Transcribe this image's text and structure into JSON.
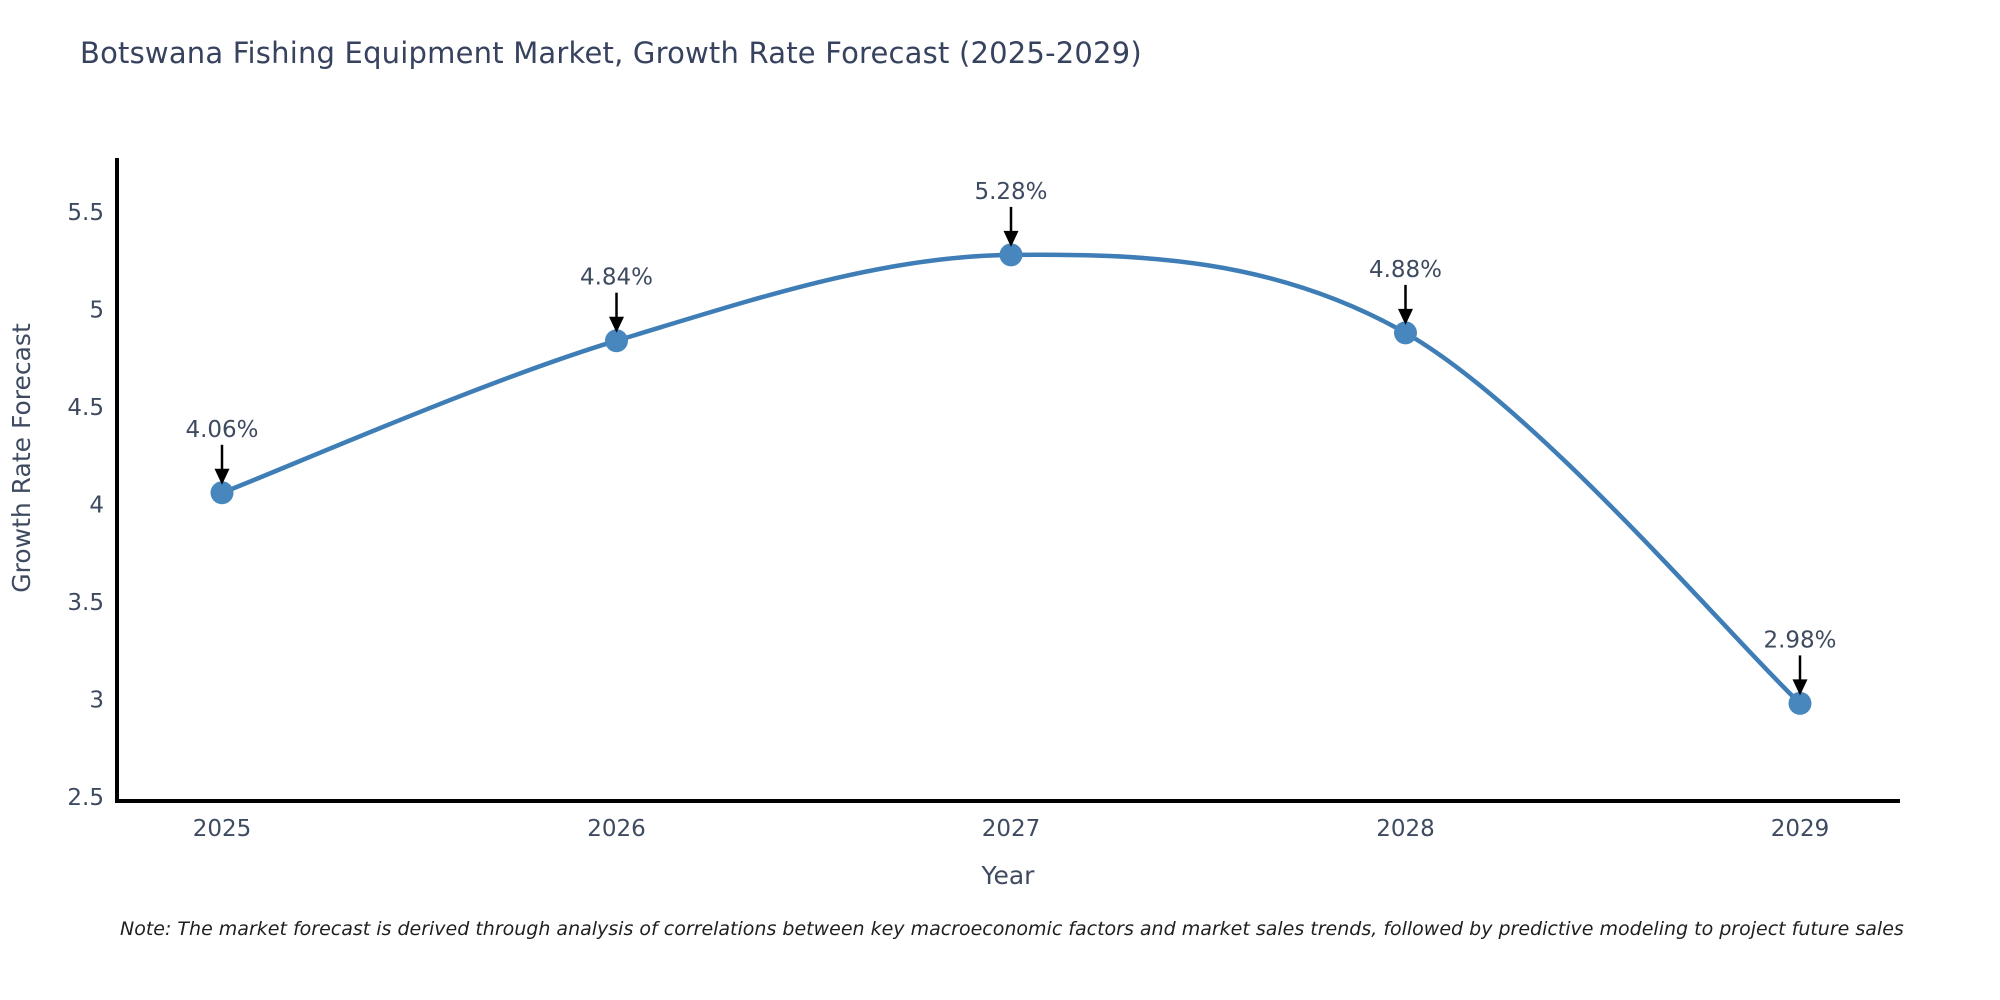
{
  "page": {
    "title": "Botswana Fishing Equipment Market, Growth Rate Forecast (2025-2029)",
    "note": "Note: The market forecast is derived through analysis of correlations between key macroeconomic factors and market sales trends, followed by predictive modeling to project future sales"
  },
  "chart_data": {
    "type": "line",
    "title": "Botswana Fishing Equipment Market, Growth Rate Forecast (2025-2029)",
    "x": [
      "2025",
      "2026",
      "2027",
      "2028",
      "2029"
    ],
    "series": [
      {
        "name": "Growth Rate Forecast",
        "values": [
          4.06,
          4.84,
          5.28,
          4.88,
          2.98
        ]
      }
    ],
    "point_labels": [
      "4.06%",
      "4.84%",
      "5.28%",
      "4.88%",
      "2.98%"
    ],
    "xlabel": "Year",
    "ylabel": "Growth Rate Forecast",
    "y_ticks": [
      2.5,
      3,
      3.5,
      4,
      4.5,
      5,
      5.5
    ],
    "ylim": [
      2.5,
      5.8
    ],
    "grid": false,
    "legend_position": "none",
    "marker": "circle",
    "annotation_style": "arrow-down-to-point",
    "colors": {
      "line": "#3e7db6",
      "marker": "#4787bd",
      "axis": "#000000",
      "tick_text": "#3e4a5f",
      "title_text": "#36425e",
      "annotation_text": "#3e4a5f",
      "annotation_arrow": "#000000",
      "note_text": "#1f1f1f",
      "background": "#ffffff"
    }
  }
}
